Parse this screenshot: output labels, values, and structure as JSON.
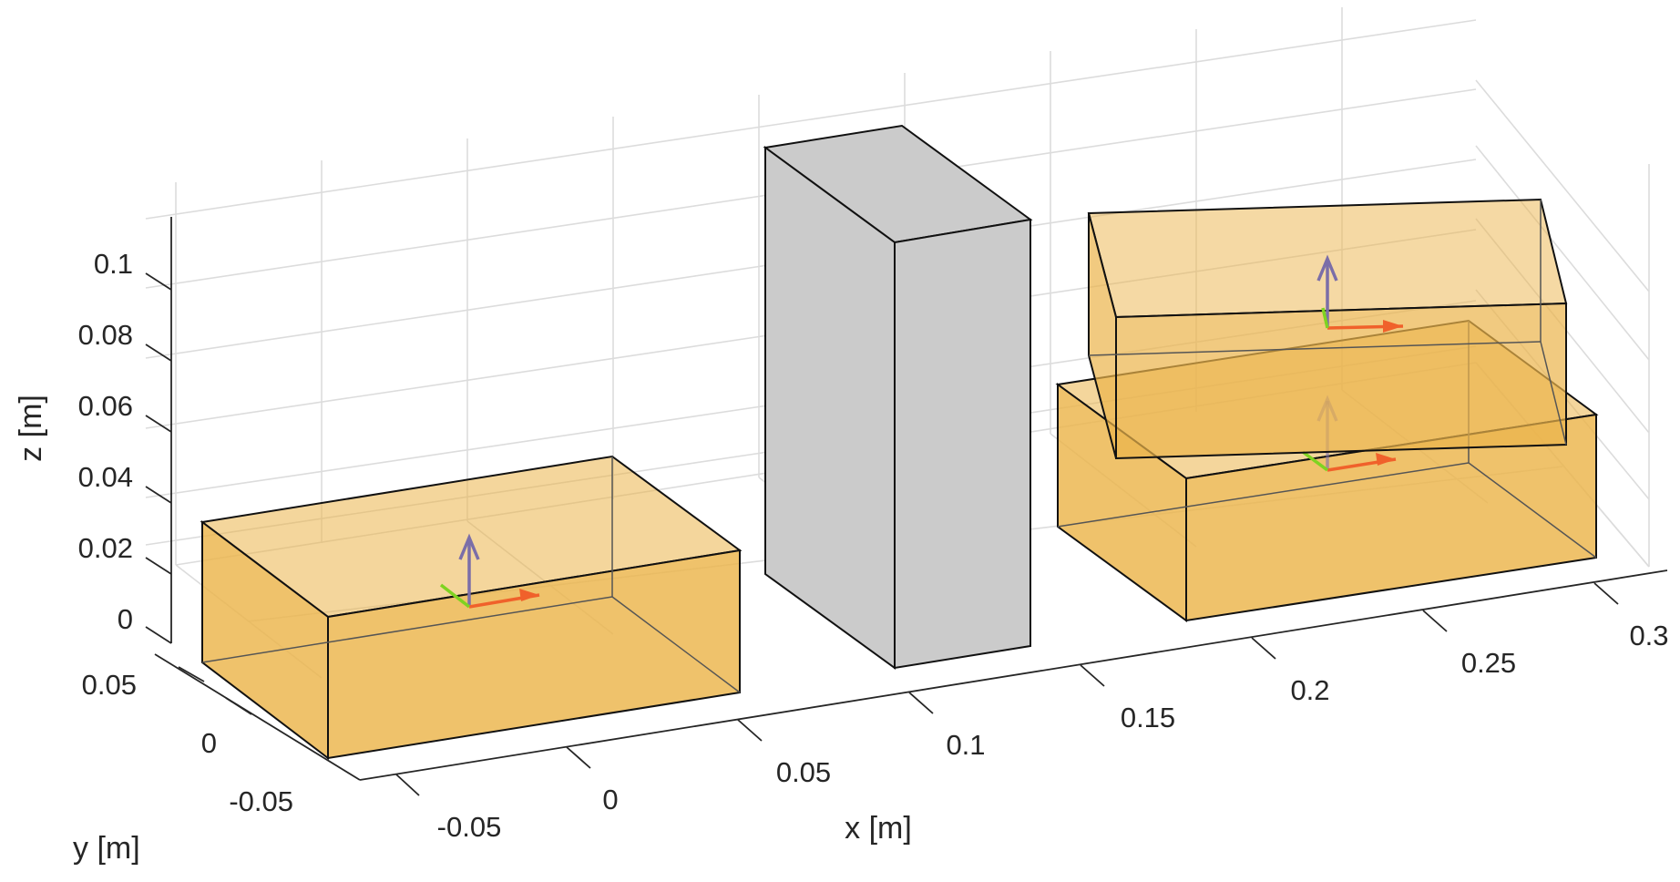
{
  "axes": {
    "x_label": "x [m]",
    "y_label": "y [m]",
    "z_label": "z [m]",
    "x_ticks": [
      "-0.05",
      "0",
      "0.05",
      "0.1",
      "0.15",
      "0.2",
      "0.25",
      "0.3"
    ],
    "y_ticks": [
      "-0.05",
      "0",
      "0.05"
    ],
    "z_ticks": [
      "0",
      "0.02",
      "0.04",
      "0.06",
      "0.08",
      "0.1"
    ]
  },
  "colors": {
    "box_fill": "#ebb44a",
    "obstacle_fill": "#cbcbcb",
    "edge": "#111111",
    "frame_x": "#f0612b",
    "frame_y": "#7ed321",
    "frame_z": "#7b6ea8"
  },
  "scene": {
    "objects": [
      "box",
      "obstacle",
      "box",
      "box"
    ],
    "frames": 3
  }
}
